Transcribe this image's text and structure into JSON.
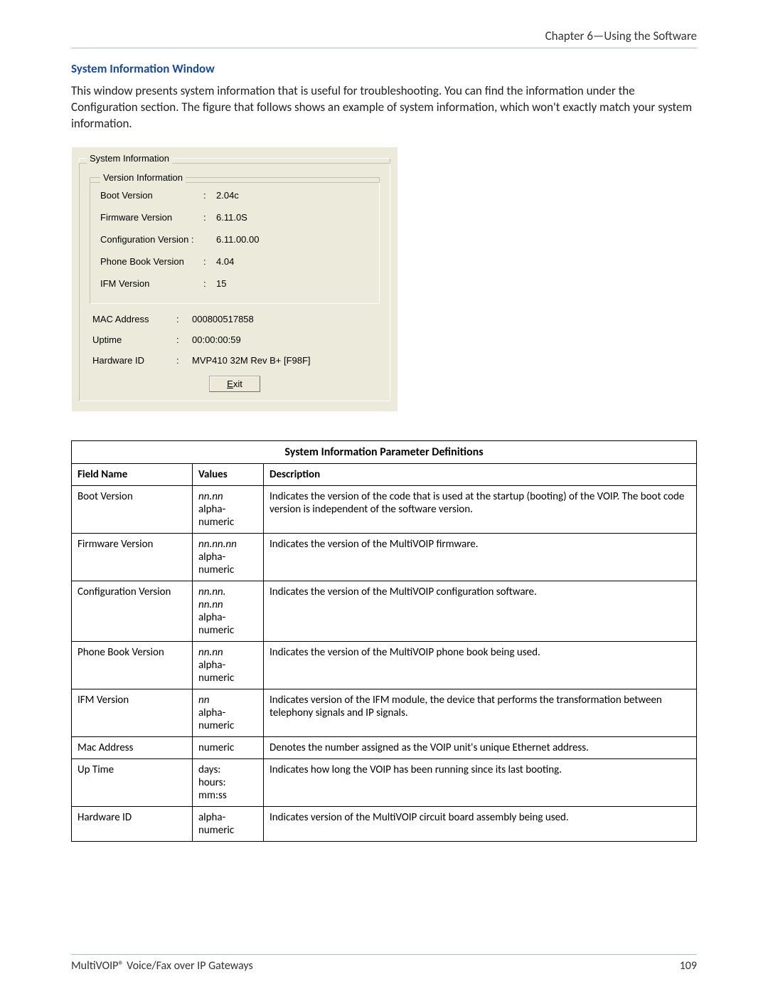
{
  "header": {
    "chapter": "Chapter 6—Using the Software"
  },
  "section": {
    "heading": "System Information Window",
    "body": "This window presents system information that is useful for troubleshooting. You can find the information under the Configuration section. The figure that follows shows an example of system information, which won't exactly match your system information."
  },
  "dialog": {
    "group_title": "System Information",
    "version_group_title": "Version Information",
    "rows": {
      "boot": {
        "label": "Boot Version",
        "value": "2.04c"
      },
      "fw": {
        "label": "Firmware Version",
        "value": "6.11.0S"
      },
      "cfg": {
        "label": "Configuration Version :",
        "value": "6.11.00.00"
      },
      "pb": {
        "label": "Phone Book Version",
        "value": "4.04"
      },
      "ifm": {
        "label": "IFM Version",
        "value": "15"
      }
    },
    "below": {
      "mac": {
        "label": "MAC Address",
        "value": "000800517858"
      },
      "uptime": {
        "label": "Uptime",
        "value": "00:00:00:59"
      },
      "hw": {
        "label": "Hardware ID",
        "value": "MVP410 32M Rev B+ [F98F]"
      }
    },
    "exit_underlined": "E",
    "exit_rest": "xit"
  },
  "table": {
    "title": "System Information Parameter Definitions",
    "headers": {
      "field": "Field Name",
      "values": "Values",
      "desc": "Description"
    },
    "rows": [
      {
        "field": "Boot Version",
        "values_italic": "nn.nn",
        "values_rest": " alpha-numeric",
        "desc": "Indicates the version of the code that is used at the startup (booting) of the VOIP. The boot code version is independent of the software version."
      },
      {
        "field": "Firmware Version",
        "values_italic": "nn.nn.nn",
        "values_rest": " alpha-numeric",
        "desc": "Indicates the version of the MultiVOIP firmware."
      },
      {
        "field": "Configuration Version",
        "values_italic": "nn.nn.\nnn.nn",
        "values_rest": " alpha-numeric",
        "desc": "Indicates the version of the MultiVOIP configuration software."
      },
      {
        "field": "Phone Book Version",
        "values_italic": "nn.nn",
        "values_rest": " alpha-numeric",
        "desc": "Indicates the version of the MultiVOIP phone book being used."
      },
      {
        "field": "IFM Version",
        "values_italic": "nn",
        "values_rest": " alpha-numeric",
        "desc": "Indicates version of the IFM module, the device that performs the transformation between telephony signals and IP signals."
      },
      {
        "field": "Mac Address",
        "values_italic": "",
        "values_rest": "numeric",
        "desc": "Denotes the number assigned as the VOIP unit's unique Ethernet address."
      },
      {
        "field": "Up Time",
        "values_italic": "",
        "values_rest": "days:\nhours:\nmm:ss",
        "desc": "Indicates how long the VOIP has been running since its last booting."
      },
      {
        "field": "Hardware ID",
        "values_italic": "",
        "values_rest": "alpha-numeric",
        "desc": "Indicates version of the MultiVOIP circuit board assembly being used."
      }
    ]
  },
  "footer": {
    "left": "MultiVOIP® Voice/Fax over IP Gateways",
    "page": "109"
  }
}
